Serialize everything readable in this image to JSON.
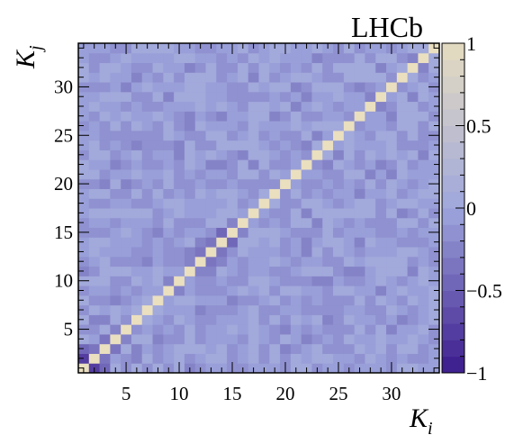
{
  "brand_label": "LHCb",
  "chart_data": {
    "type": "heatmap",
    "title": "",
    "xlabel_main": "K",
    "xlabel_sub": "i",
    "ylabel_main": "K",
    "ylabel_sub": "j",
    "n_bins": 34,
    "x_range": [
      0.5,
      34.5
    ],
    "y_range": [
      0.5,
      34.5
    ],
    "x_ticks": [
      5,
      10,
      15,
      20,
      25,
      30
    ],
    "y_ticks": [
      5,
      10,
      15,
      20,
      25,
      30
    ],
    "colorbar": {
      "min": -1,
      "max": 1,
      "ticks": [
        {
          "value": 1,
          "label": "1"
        },
        {
          "value": 0.5,
          "label": "0.5"
        },
        {
          "value": 0,
          "label": "0"
        },
        {
          "value": -0.5,
          "label": "−0.5"
        },
        {
          "value": -1,
          "label": "−1"
        }
      ],
      "color_low": "#3b1a8c",
      "color_mid": "#9ea6dc",
      "color_high": "#e6dcc0"
    },
    "description": "Correlation matrix, diagonal = 1, off-diagonal values mostly within about -0.3 to 0.15",
    "notable_cells": [
      {
        "i": 1,
        "j": 2,
        "value": -0.75
      },
      {
        "i": 2,
        "j": 1,
        "value": -0.75
      },
      {
        "i": 1,
        "j": 3,
        "value": -0.45
      },
      {
        "i": 3,
        "j": 1,
        "value": -0.45
      },
      {
        "i": 2,
        "j": 3,
        "value": -0.35
      },
      {
        "i": 3,
        "j": 2,
        "value": -0.35
      },
      {
        "i": 3,
        "j": 4,
        "value": -0.35
      },
      {
        "i": 4,
        "j": 3,
        "value": -0.35
      },
      {
        "i": 4,
        "j": 5,
        "value": -0.3
      },
      {
        "i": 5,
        "j": 4,
        "value": -0.3
      },
      {
        "i": 12,
        "j": 13,
        "value": -0.4
      },
      {
        "i": 13,
        "j": 12,
        "value": -0.4
      },
      {
        "i": 13,
        "j": 14,
        "value": -0.35
      },
      {
        "i": 14,
        "j": 13,
        "value": -0.35
      },
      {
        "i": 14,
        "j": 15,
        "value": -0.45
      },
      {
        "i": 15,
        "j": 14,
        "value": -0.45
      },
      {
        "i": 11,
        "j": 13,
        "value": -0.3
      },
      {
        "i": 13,
        "j": 11,
        "value": -0.3
      },
      {
        "i": 12,
        "j": 14,
        "value": -0.3
      },
      {
        "i": 14,
        "j": 12,
        "value": -0.3
      },
      {
        "i": 15,
        "j": 16,
        "value": -0.3
      },
      {
        "i": 16,
        "j": 15,
        "value": -0.3
      },
      {
        "i": 11,
        "j": 12,
        "value": -0.25
      },
      {
        "i": 12,
        "j": 11,
        "value": -0.25
      },
      {
        "i": 28,
        "j": 29,
        "value": -0.3
      },
      {
        "i": 29,
        "j": 28,
        "value": -0.3
      },
      {
        "i": 25,
        "j": 23,
        "value": -0.3
      },
      {
        "i": 23,
        "j": 25,
        "value": -0.3
      },
      {
        "i": 22,
        "j": 24,
        "value": -0.25
      },
      {
        "i": 24,
        "j": 22,
        "value": -0.25
      },
      {
        "i": 32,
        "j": 33,
        "value": -0.25
      },
      {
        "i": 33,
        "j": 32,
        "value": -0.25
      }
    ]
  }
}
